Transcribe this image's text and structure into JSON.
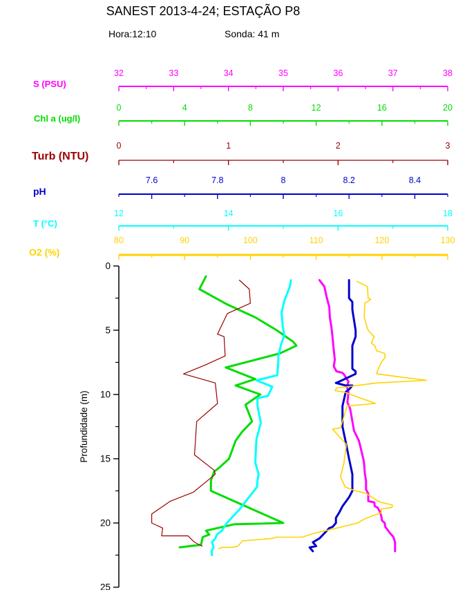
{
  "header": {
    "title": "SANEST 2013-4-24; ESTAÇÃO P8",
    "hora": "Hora:12:10",
    "sonda": "Sonda: 41 m"
  },
  "chart_data": {
    "type": "line",
    "title": "SANEST 2013-4-24; ESTAÇÃO P8",
    "subtitle": "Hora:12:10   Sonda: 41 m",
    "orientation": "vertical-depth-profile",
    "grid": "off",
    "depth_axis": {
      "label": "Profundidade (m)",
      "range": [
        0,
        25
      ],
      "major_ticks": [
        0,
        5,
        10,
        15,
        20,
        25
      ],
      "tick_labels": [
        "0",
        "5",
        "10",
        "15",
        "20",
        "25"
      ],
      "minor_step": 2.5,
      "color": "#000000"
    },
    "series": [
      {
        "name": "S (PSU)",
        "color": "#FF00FF",
        "axis": {
          "range": [
            32,
            38
          ],
          "majors": [
            32,
            33,
            34,
            35,
            36,
            37,
            38
          ],
          "major_labels": [
            "32",
            "33",
            "34",
            "35",
            "36",
            "37",
            "38"
          ],
          "minor_step": 0.5
        },
        "points": [
          [
            35.66,
            1.1
          ],
          [
            35.75,
            1.6
          ],
          [
            35.79,
            2.4
          ],
          [
            35.84,
            3.2
          ],
          [
            35.85,
            4.0
          ],
          [
            35.88,
            4.8
          ],
          [
            35.9,
            5.6
          ],
          [
            35.92,
            6.5
          ],
          [
            35.94,
            7.3
          ],
          [
            35.92,
            7.8
          ],
          [
            35.97,
            8.2
          ],
          [
            36.07,
            8.3
          ],
          [
            36.1,
            8.4
          ],
          [
            36.19,
            9.0
          ],
          [
            36.16,
            9.4
          ],
          [
            36.19,
            9.8
          ],
          [
            36.17,
            10.6
          ],
          [
            36.22,
            11.1
          ],
          [
            36.29,
            12.8
          ],
          [
            36.38,
            13.6
          ],
          [
            36.42,
            14.3
          ],
          [
            36.47,
            15.2
          ],
          [
            36.49,
            16.2
          ],
          [
            36.51,
            16.7
          ],
          [
            36.51,
            17.4
          ],
          [
            36.55,
            17.7
          ],
          [
            36.55,
            18.3
          ],
          [
            36.66,
            18.4
          ],
          [
            36.67,
            18.7
          ],
          [
            36.72,
            18.8
          ],
          [
            36.76,
            19.1
          ],
          [
            36.79,
            19.5
          ],
          [
            36.8,
            19.8
          ],
          [
            36.85,
            20.0
          ],
          [
            36.86,
            20.3
          ],
          [
            36.95,
            20.8
          ],
          [
            37.01,
            21.1
          ],
          [
            37.04,
            21.5
          ],
          [
            37.04,
            22.2
          ]
        ]
      },
      {
        "name": "Chl a (ug/l)",
        "color": "#00DD00",
        "axis": {
          "range": [
            0,
            20
          ],
          "majors": [
            0,
            4,
            8,
            12,
            16,
            20
          ],
          "major_labels": [
            "0",
            "4",
            "8",
            "12",
            "16",
            "20"
          ],
          "minor_step": 2
        },
        "points": [
          [
            5.3,
            0.8
          ],
          [
            4.9,
            1.8
          ],
          [
            6.6,
            3.0
          ],
          [
            8.3,
            4.0
          ],
          [
            9.6,
            5.0
          ],
          [
            10.6,
            5.9
          ],
          [
            10.8,
            6.2
          ],
          [
            9.8,
            6.8
          ],
          [
            6.5,
            7.9
          ],
          [
            8.3,
            8.8
          ],
          [
            7.1,
            9.3
          ],
          [
            8.6,
            10.0
          ],
          [
            7.7,
            10.8
          ],
          [
            8.1,
            12.1
          ],
          [
            7.5,
            12.9
          ],
          [
            7.1,
            13.6
          ],
          [
            6.7,
            15.0
          ],
          [
            6.1,
            15.7
          ],
          [
            5.8,
            16.0
          ],
          [
            5.6,
            16.7
          ],
          [
            5.6,
            17.5
          ],
          [
            10.0,
            20.0
          ],
          [
            7.0,
            20.1
          ],
          [
            5.3,
            20.6
          ],
          [
            5.5,
            20.9
          ],
          [
            5.1,
            21.1
          ],
          [
            5.0,
            21.7
          ],
          [
            3.7,
            21.9
          ]
        ]
      },
      {
        "name": "Turb (NTU)",
        "color": "#990000",
        "axis": {
          "range": [
            0,
            3
          ],
          "majors": [
            0,
            1,
            2,
            3
          ],
          "major_labels": [
            "0",
            "1",
            "2",
            "3"
          ],
          "minor_step": 0.5
        },
        "points": [
          [
            1.1,
            1.1
          ],
          [
            1.19,
            1.8
          ],
          [
            1.2,
            2.9
          ],
          [
            0.99,
            3.7
          ],
          [
            0.9,
            5.3
          ],
          [
            0.96,
            5.5
          ],
          [
            0.97,
            7.0
          ],
          [
            0.79,
            7.7
          ],
          [
            0.59,
            8.4
          ],
          [
            0.88,
            9.1
          ],
          [
            0.9,
            10.7
          ],
          [
            0.71,
            12.1
          ],
          [
            0.69,
            14.7
          ],
          [
            0.87,
            15.9
          ],
          [
            0.88,
            16.2
          ],
          [
            0.81,
            16.7
          ],
          [
            0.68,
            17.6
          ],
          [
            0.47,
            18.3
          ],
          [
            0.3,
            19.3
          ],
          [
            0.3,
            20.0
          ],
          [
            0.4,
            20.4
          ],
          [
            0.39,
            21.0
          ],
          [
            0.63,
            21.0
          ],
          [
            0.69,
            21.5
          ],
          [
            0.76,
            21.8
          ]
        ]
      },
      {
        "name": "pH",
        "color": "#0000CC",
        "axis": {
          "range": [
            7.5,
            8.5
          ],
          "majors": [
            7.6,
            7.8,
            8.0,
            8.2,
            8.4
          ],
          "major_labels": [
            "7.6",
            "7.8",
            "8",
            "8.2",
            "8.4"
          ],
          "minor_step": 0.1
        },
        "points": [
          [
            8.2,
            1.1
          ],
          [
            8.2,
            2.5
          ],
          [
            8.21,
            2.8
          ],
          [
            8.21,
            3.4
          ],
          [
            8.22,
            5.0
          ],
          [
            8.22,
            5.5
          ],
          [
            8.21,
            6.2
          ],
          [
            8.21,
            8.0
          ],
          [
            8.22,
            8.2
          ],
          [
            8.22,
            8.4
          ],
          [
            8.17,
            9.0
          ],
          [
            8.16,
            9.1
          ],
          [
            8.19,
            9.3
          ],
          [
            8.21,
            9.3
          ],
          [
            8.2,
            9.6
          ],
          [
            8.19,
            9.8
          ],
          [
            8.18,
            10.9
          ],
          [
            8.18,
            12.5
          ],
          [
            8.19,
            13.7
          ],
          [
            8.2,
            15.0
          ],
          [
            8.21,
            16.2
          ],
          [
            8.21,
            16.7
          ],
          [
            8.21,
            17.5
          ],
          [
            8.2,
            18.0
          ],
          [
            8.18,
            18.7
          ],
          [
            8.17,
            19.2
          ],
          [
            8.16,
            19.6
          ],
          [
            8.16,
            20.0
          ],
          [
            8.15,
            20.3
          ],
          [
            8.14,
            20.4
          ],
          [
            8.11,
            21.2
          ],
          [
            8.09,
            21.5
          ],
          [
            8.1,
            21.8
          ],
          [
            8.08,
            21.9
          ],
          [
            8.09,
            22.2
          ]
        ]
      },
      {
        "name": "T (°C)",
        "color": "#00FFFF",
        "axis": {
          "range": [
            12,
            18
          ],
          "majors": [
            12,
            14,
            16,
            18
          ],
          "major_labels": [
            "12",
            "14",
            "16",
            "18"
          ],
          "minor_step": 1
        },
        "points": [
          [
            15.14,
            1.1
          ],
          [
            15.12,
            1.6
          ],
          [
            15.02,
            2.7
          ],
          [
            14.97,
            3.6
          ],
          [
            14.99,
            4.7
          ],
          [
            15.02,
            5.4
          ],
          [
            14.96,
            6.1
          ],
          [
            14.91,
            7.0
          ],
          [
            14.91,
            7.4
          ],
          [
            14.89,
            8.5
          ],
          [
            14.51,
            8.9
          ],
          [
            14.8,
            9.4
          ],
          [
            14.72,
            10.1
          ],
          [
            14.53,
            10.3
          ],
          [
            14.53,
            10.9
          ],
          [
            14.59,
            12.2
          ],
          [
            14.51,
            13.5
          ],
          [
            14.49,
            15.3
          ],
          [
            14.55,
            16.2
          ],
          [
            14.53,
            16.7
          ],
          [
            14.52,
            17.2
          ],
          [
            14.19,
            19.0
          ],
          [
            13.97,
            20.0
          ],
          [
            13.88,
            20.6
          ],
          [
            13.79,
            20.9
          ],
          [
            13.76,
            21.2
          ],
          [
            13.7,
            21.5
          ],
          [
            13.73,
            21.9
          ],
          [
            13.69,
            22.2
          ],
          [
            13.7,
            22.5
          ]
        ]
      },
      {
        "name": "O2 (%)",
        "color": "#FFD200",
        "axis": {
          "range": [
            80,
            130
          ],
          "majors": [
            80,
            90,
            100,
            110,
            120,
            130
          ],
          "major_labels": [
            "80",
            "90",
            "100",
            "110",
            "120",
            "130"
          ],
          "minor_step": 5
        },
        "points": [
          [
            116.2,
            1.2
          ],
          [
            117.8,
            1.6
          ],
          [
            117.9,
            2.5
          ],
          [
            118.3,
            2.6
          ],
          [
            117.4,
            2.9
          ],
          [
            117.3,
            4.0
          ],
          [
            117.9,
            5.0
          ],
          [
            118.8,
            5.5
          ],
          [
            118.4,
            6.0
          ],
          [
            118.9,
            6.2
          ],
          [
            119.2,
            6.6
          ],
          [
            120.4,
            6.8
          ],
          [
            120.5,
            7.1
          ],
          [
            119.9,
            7.5
          ],
          [
            119.3,
            8.2
          ],
          [
            119.2,
            8.4
          ],
          [
            126.8,
            8.9
          ],
          [
            119.2,
            9.1
          ],
          [
            113.1,
            9.5
          ],
          [
            112.9,
            9.7
          ],
          [
            114.2,
            9.8
          ],
          [
            119.0,
            10.7
          ],
          [
            114.7,
            10.9
          ],
          [
            113.7,
            12.6
          ],
          [
            112.5,
            12.7
          ],
          [
            114.6,
            13.9
          ],
          [
            114.2,
            15.4
          ],
          [
            113.7,
            16.4
          ],
          [
            114.4,
            17.2
          ],
          [
            116.0,
            17.5
          ],
          [
            117.6,
            17.7
          ],
          [
            119.4,
            18.3
          ],
          [
            119.9,
            18.4
          ],
          [
            121.6,
            18.6
          ],
          [
            121.5,
            18.8
          ],
          [
            119.9,
            18.9
          ],
          [
            119.9,
            19.2
          ],
          [
            118.3,
            19.5
          ],
          [
            117.3,
            19.7
          ],
          [
            116.3,
            20.0
          ],
          [
            112.3,
            20.5
          ],
          [
            109.7,
            20.8
          ],
          [
            107.9,
            21.1
          ],
          [
            103.9,
            21.1
          ],
          [
            103.4,
            21.2
          ],
          [
            98.8,
            21.4
          ],
          [
            98.1,
            21.8
          ],
          [
            97.3,
            21.9
          ],
          [
            95.7,
            21.9
          ],
          [
            95.2,
            22.0
          ]
        ]
      }
    ]
  }
}
